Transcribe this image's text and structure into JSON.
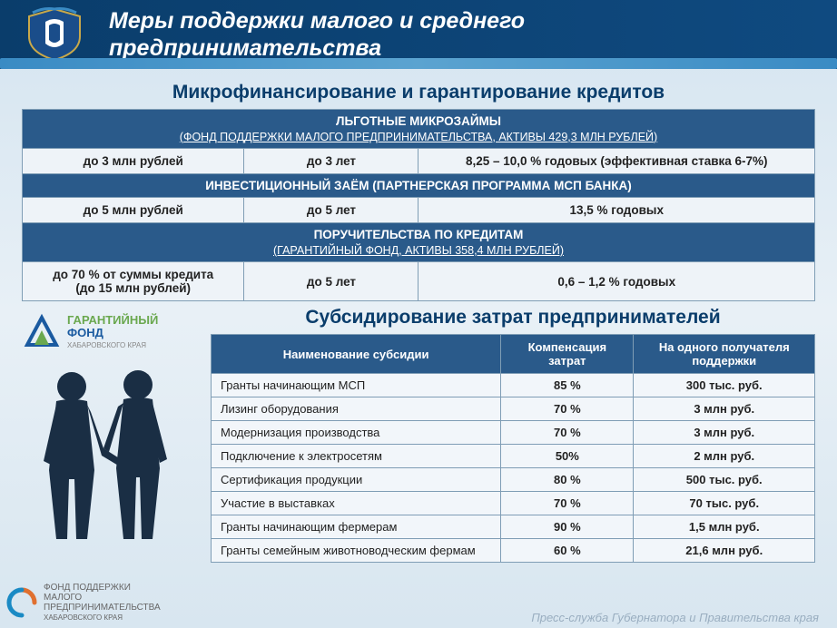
{
  "colors": {
    "header_bg": "#0a3d6b",
    "band_bg": "#2a5a8a",
    "cell_bg": "#eef3f8",
    "cell_border": "#7f9db5",
    "title_color": "#0a3d6b",
    "page_bg_top": "#d4e4f0",
    "page_bg_bottom": "#d8e6f0"
  },
  "header": {
    "title_line1": "Меры поддержки малого и среднего",
    "title_line2": "предпринимательства"
  },
  "section1": {
    "title": "Микрофинансирование и гарантирование кредитов",
    "blocks": [
      {
        "band_title": "ЛЬГОТНЫЕ МИКРОЗАЙМЫ",
        "band_sub": "(ФОНД ПОДДЕРЖКИ МАЛОГО ПРЕДПРИНИМАТЕЛЬСТВА,  АКТИВЫ  429,3 МЛН РУБЛЕЙ)",
        "cells": [
          "до 3 млн рублей",
          "до 3 лет",
          "8,25 – 10,0 %  годовых  (эффективная ставка 6-7%)"
        ]
      },
      {
        "band_title": "ИНВЕСТИЦИОННЫЙ   ЗАЁМ  (ПАРТНЕРСКАЯ   ПРОГРАММА  МСП  БАНКА)",
        "band_sub": "",
        "cells": [
          "до 5 млн рублей",
          "до 5 лет",
          "13,5 %  годовых"
        ]
      },
      {
        "band_title": "ПОРУЧИТЕЛЬСТВА   ПО КРЕДИТАМ",
        "band_sub": "(ГАРАНТИЙНЫЙ   ФОНД, АКТИВЫ   358,4 МЛН  РУБЛЕЙ)",
        "cells": [
          "до 70 %  от суммы  кредита\n(до 15 млн рублей)",
          "до 5 лет",
          "0,6 – 1,2 %  годовых"
        ]
      }
    ]
  },
  "logos": {
    "gf_word1": "ГАРАНТИЙНЫЙ",
    "gf_word2": "ФОНД",
    "gf_region": "ХАБАРОВСКОГО КРАЯ",
    "fpm_line1": "ФОНД ПОДДЕРЖКИ",
    "fpm_line2": "МАЛОГО",
    "fpm_line3": "ПРЕДПРИНИМАТЕЛЬСТВА",
    "fpm_region": "ХАБАРОВСКОГО КРАЯ"
  },
  "section2": {
    "title": "Субсидирование затрат предпринимателей",
    "columns": [
      "Наименование субсидии",
      "Компенсация затрат",
      "На одного получателя поддержки"
    ],
    "rows": [
      [
        "Гранты начинающим  МСП",
        "85 %",
        "300 тыс.  руб."
      ],
      [
        "Лизинг оборудования",
        "70 %",
        "3 млн руб."
      ],
      [
        "Модернизация производства",
        "70 %",
        "3 млн руб."
      ],
      [
        "Подключение к электросетям",
        "50%",
        "2 млн руб."
      ],
      [
        "Сертификация продукции",
        "80 %",
        "500 тыс.  руб."
      ],
      [
        "Участие в выставках",
        "70 %",
        "70 тыс. руб."
      ],
      [
        "Гранты начинающим  фермерам",
        "90 %",
        "1,5 млн руб."
      ],
      [
        "Гранты семейным животноводческим фермам",
        "60 %",
        "21,6 млн руб."
      ]
    ]
  },
  "footer": "Пресс-служба Губернатора и Правительства края"
}
